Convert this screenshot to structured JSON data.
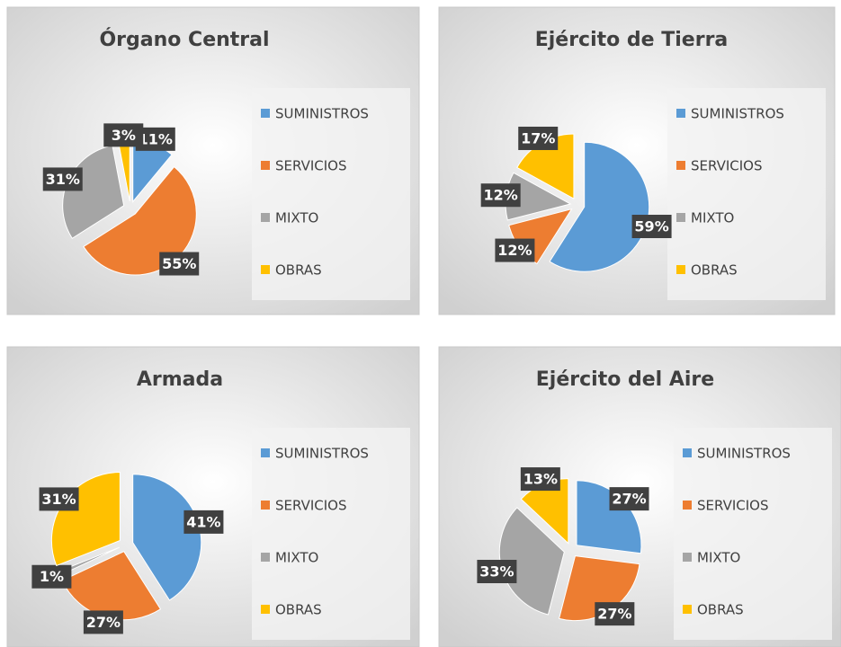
{
  "chart_data": [
    {
      "type": "pie",
      "title": "Órgano Central",
      "categories": [
        "SUMINISTROS",
        "SERVICIOS",
        "MIXTO",
        "OBRAS"
      ],
      "values": [
        11,
        55,
        31,
        3
      ],
      "value_labels": [
        "11%",
        "55%",
        "31%",
        "3%"
      ],
      "colors": [
        "#5b9bd5",
        "#ed7d31",
        "#a5a5a5",
        "#ffc000"
      ]
    },
    {
      "type": "pie",
      "title": "Ejército de Tierra",
      "categories": [
        "SUMINISTROS",
        "SERVICIOS",
        "MIXTO",
        "OBRAS"
      ],
      "values": [
        59,
        12,
        12,
        17
      ],
      "value_labels": [
        "59%",
        "12%",
        "12%",
        "17%"
      ],
      "colors": [
        "#5b9bd5",
        "#ed7d31",
        "#a5a5a5",
        "#ffc000"
      ]
    },
    {
      "type": "pie",
      "title": "Armada",
      "categories": [
        "SUMINISTROS",
        "SERVICIOS",
        "MIXTO",
        "OBRAS"
      ],
      "values": [
        41,
        27,
        1,
        31
      ],
      "value_labels": [
        "41%",
        "27%",
        "1%",
        "31%"
      ],
      "colors": [
        "#5b9bd5",
        "#ed7d31",
        "#a5a5a5",
        "#ffc000"
      ]
    },
    {
      "type": "pie",
      "title": "Ejército del Aire",
      "categories": [
        "SUMINISTROS",
        "SERVICIOS",
        "MIXTO",
        "OBRAS"
      ],
      "values": [
        27,
        27,
        33,
        13
      ],
      "value_labels": [
        "27%",
        "27%",
        "33%",
        "13%"
      ],
      "colors": [
        "#5b9bd5",
        "#ed7d31",
        "#a5a5a5",
        "#ffc000"
      ]
    }
  ]
}
